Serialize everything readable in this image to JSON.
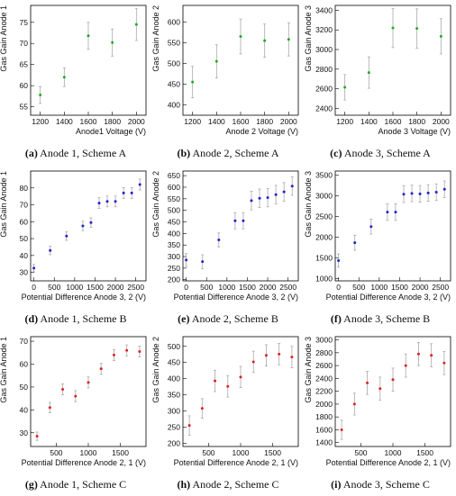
{
  "chart_data": [
    {
      "id": "a",
      "type": "scatter",
      "caption_label": "(a)",
      "caption_text": " Anode 1, Scheme A",
      "xlabel": "Anode1 Voltage (V)",
      "ylabel": "Gas Gain Anode 1",
      "color": "#22aa22",
      "xlim": [
        1120,
        2080
      ],
      "ylim": [
        53,
        79
      ],
      "xticks": [
        1200,
        1400,
        1600,
        1800,
        2000
      ],
      "yticks": [
        55,
        60,
        65,
        70,
        75
      ],
      "x": [
        1200,
        1400,
        1600,
        1800,
        2000
      ],
      "y": [
        57.8,
        62,
        71.8,
        70.2,
        74.5
      ],
      "err": [
        2,
        2.2,
        3.2,
        3.2,
        3.8
      ]
    },
    {
      "id": "b",
      "type": "scatter",
      "caption_label": "(b)",
      "caption_text": " Anode 2, Scheme A",
      "xlabel": "Anode 2 Voltage (V)",
      "ylabel": "Gas Gain Anode 2",
      "color": "#22aa22",
      "xlim": [
        1120,
        2080
      ],
      "ylim": [
        375,
        640
      ],
      "xticks": [
        1200,
        1400,
        1600,
        1800,
        2000
      ],
      "yticks": [
        400,
        450,
        500,
        550,
        600
      ],
      "x": [
        1200,
        1400,
        1600,
        1800,
        2000
      ],
      "y": [
        455,
        505,
        565,
        555,
        558
      ],
      "err": [
        38,
        40,
        42,
        40,
        40
      ]
    },
    {
      "id": "c",
      "type": "scatter",
      "caption_label": "(c)",
      "caption_text": " Anode 3, Scheme A",
      "xlabel": "Anode 3 Voltage (V)",
      "ylabel": "Gas Gain Anode 3",
      "color": "#22aa22",
      "xlim": [
        1120,
        2080
      ],
      "ylim": [
        2330,
        3450
      ],
      "xticks": [
        1200,
        1400,
        1600,
        1800,
        2000
      ],
      "yticks": [
        2400,
        2600,
        2800,
        3000,
        3200,
        3400
      ],
      "x": [
        1200,
        1400,
        1600,
        1800,
        2000
      ],
      "y": [
        2615,
        2765,
        3220,
        3215,
        3135
      ],
      "err": [
        130,
        160,
        200,
        200,
        180
      ]
    },
    {
      "id": "d",
      "type": "scatter",
      "caption_label": "(d)",
      "caption_text": " Anode 1, Scheme B",
      "xlabel": "Potential Difference Anode 3, 2 (V)",
      "ylabel": "Gas Gain Anode 1",
      "color": "#2222cc",
      "xlim": [
        -80,
        2750
      ],
      "ylim": [
        25,
        90
      ],
      "xticks": [
        0,
        500,
        1000,
        1500,
        2000,
        2500
      ],
      "yticks": [
        30,
        40,
        50,
        60,
        70,
        80
      ],
      "x": [
        0,
        400,
        800,
        1200,
        1400,
        1600,
        1800,
        2000,
        2200,
        2400,
        2600
      ],
      "y": [
        32.5,
        43,
        51.5,
        57.5,
        59.5,
        71,
        72,
        72,
        77,
        77,
        82
      ],
      "err": [
        2.2,
        2.5,
        2.5,
        2.8,
        2.8,
        3.2,
        3.2,
        3.2,
        3.2,
        3.2,
        3.2
      ]
    },
    {
      "id": "e",
      "type": "scatter",
      "caption_label": "(e)",
      "caption_text": " Anode 2, Scheme B",
      "xlabel": "Potential Difference Anode 3, 2 (V)",
      "ylabel": "Gas Gain Anode 2",
      "color": "#2222cc",
      "xlim": [
        -80,
        2750
      ],
      "ylim": [
        195,
        670
      ],
      "xticks": [
        0,
        500,
        1000,
        1500,
        2000,
        2500
      ],
      "yticks": [
        200,
        250,
        300,
        350,
        400,
        450,
        500,
        550,
        600,
        650
      ],
      "x": [
        0,
        400,
        800,
        1200,
        1400,
        1600,
        1800,
        2000,
        2200,
        2400,
        2600
      ],
      "y": [
        285,
        278,
        372,
        455,
        455,
        542,
        552,
        555,
        568,
        580,
        605
      ],
      "err": [
        28,
        30,
        30,
        35,
        35,
        40,
        40,
        40,
        40,
        40,
        40
      ]
    },
    {
      "id": "f",
      "type": "scatter",
      "caption_label": "(f)",
      "caption_text": " Anode 3, Scheme B",
      "xlabel": "Potential Difference Anode 3, 2 (V)",
      "ylabel": "Gas Gain Anode 3",
      "color": "#2222cc",
      "xlim": [
        -80,
        2750
      ],
      "ylim": [
        950,
        3600
      ],
      "xticks": [
        0,
        500,
        1000,
        1500,
        2000,
        2500
      ],
      "yticks": [
        1000,
        1500,
        2000,
        2500,
        3000,
        3500
      ],
      "x": [
        0,
        400,
        800,
        1200,
        1400,
        1600,
        1800,
        2000,
        2200,
        2400,
        2600
      ],
      "y": [
        1440,
        1870,
        2260,
        2610,
        2610,
        3040,
        3060,
        3050,
        3070,
        3090,
        3160
      ],
      "err": [
        160,
        180,
        180,
        200,
        200,
        200,
        200,
        200,
        200,
        200,
        200
      ]
    },
    {
      "id": "g",
      "type": "scatter",
      "caption_label": "(g)",
      "caption_text": " Anode 1, Scheme C",
      "xlabel": "Potential Difference Anode 2, 1 (V)",
      "ylabel": "Gas Gain Anode 1",
      "color": "#dd2222",
      "xlim": [
        100,
        1900
      ],
      "ylim": [
        24,
        72
      ],
      "xticks": [
        500,
        1000,
        1500
      ],
      "yticks": [
        30,
        40,
        50,
        60,
        70
      ],
      "x": [
        200,
        400,
        600,
        800,
        1000,
        1200,
        1400,
        1600,
        1800
      ],
      "y": [
        28.5,
        41,
        49,
        46,
        52,
        58,
        64,
        66,
        65.5
      ],
      "err": [
        1.8,
        2.2,
        2.4,
        2.4,
        2.4,
        2.4,
        2.4,
        2.4,
        2.4
      ]
    },
    {
      "id": "h",
      "type": "scatter",
      "caption_label": "(h)",
      "caption_text": " Anode 2, Scheme C",
      "xlabel": "Potential Difference Anode 2, 1 (V)",
      "ylabel": "Gas Gain Anode 2",
      "color": "#dd2222",
      "xlim": [
        100,
        1900
      ],
      "ylim": [
        190,
        530
      ],
      "xticks": [
        500,
        1000,
        1500
      ],
      "yticks": [
        200,
        250,
        300,
        350,
        400,
        450,
        500
      ],
      "x": [
        200,
        400,
        600,
        800,
        1000,
        1200,
        1400,
        1600,
        1800
      ],
      "y": [
        255,
        308,
        393,
        376,
        405,
        452,
        472,
        476,
        467
      ],
      "err": [
        30,
        30,
        33,
        33,
        33,
        33,
        33,
        33,
        33
      ]
    },
    {
      "id": "i",
      "type": "scatter",
      "caption_label": "(i)",
      "caption_text": " Anode 3, Scheme C",
      "xlabel": "Potential Difference Anode 2, 1 (V)",
      "ylabel": "Gas Gain Anode 3",
      "color": "#dd2222",
      "xlim": [
        100,
        1900
      ],
      "ylim": [
        1340,
        3050
      ],
      "xticks": [
        500,
        1000,
        1500
      ],
      "yticks": [
        1400,
        1600,
        1800,
        2000,
        2200,
        2400,
        2600,
        2800,
        3000
      ],
      "x": [
        200,
        400,
        600,
        800,
        1000,
        1200,
        1400,
        1600,
        1800
      ],
      "y": [
        1600,
        2000,
        2330,
        2240,
        2380,
        2600,
        2780,
        2760,
        2640
      ],
      "err": [
        150,
        170,
        180,
        180,
        180,
        180,
        180,
        180,
        180
      ]
    }
  ]
}
